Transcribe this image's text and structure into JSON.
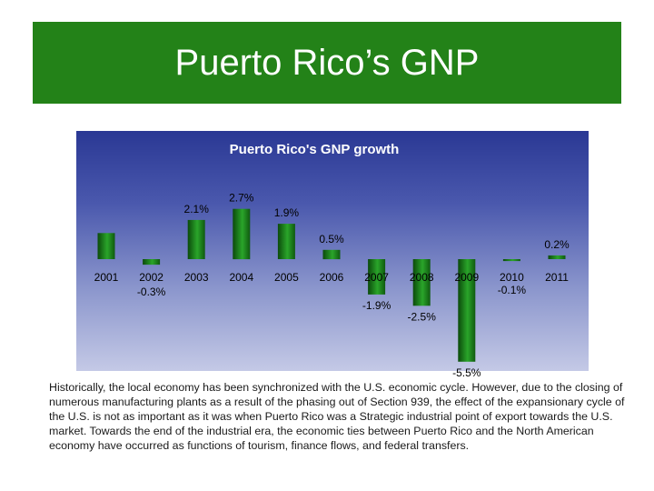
{
  "slide": {
    "title": "Puerto Rico’s GNP",
    "description": "Historically, the local economy has been synchronized with the U.S. economic cycle. However, due to the closing of numerous manufacturing plants as a result of the phasing out of Section 939, the effect of the expansionary cycle of the U.S. is not as important as it was when Puerto Rico was a Strategic industrial point of export towards the U.S. market. Towards the end of the industrial era, the economic ties between Puerto Rico and the North American economy have occurred as functions of tourism, finance flows, and federal transfers."
  },
  "colors": {
    "banner": "#238218",
    "bar_dark": "#0b4a0b",
    "bar_light": "#2aa52a"
  },
  "chart_data": {
    "type": "bar",
    "title": "Puerto Rico's GNP growth",
    "categories": [
      "2001",
      "2002",
      "2003",
      "2004",
      "2005",
      "2006",
      "2007",
      "2008",
      "2009",
      "2010",
      "2011"
    ],
    "values": [
      1.4,
      -0.3,
      2.1,
      2.7,
      1.9,
      0.5,
      -1.9,
      -2.5,
      -5.5,
      -0.1,
      0.2
    ],
    "data_labels": [
      "",
      "-0.3%",
      "2.1%",
      "2.7%",
      "1.9%",
      "0.5%",
      "-1.9%",
      "-2.5%",
      "-5.5%",
      "-0.1%",
      "0.2%"
    ],
    "xlabel": "",
    "ylabel": "",
    "grid": false,
    "legend": "none"
  }
}
